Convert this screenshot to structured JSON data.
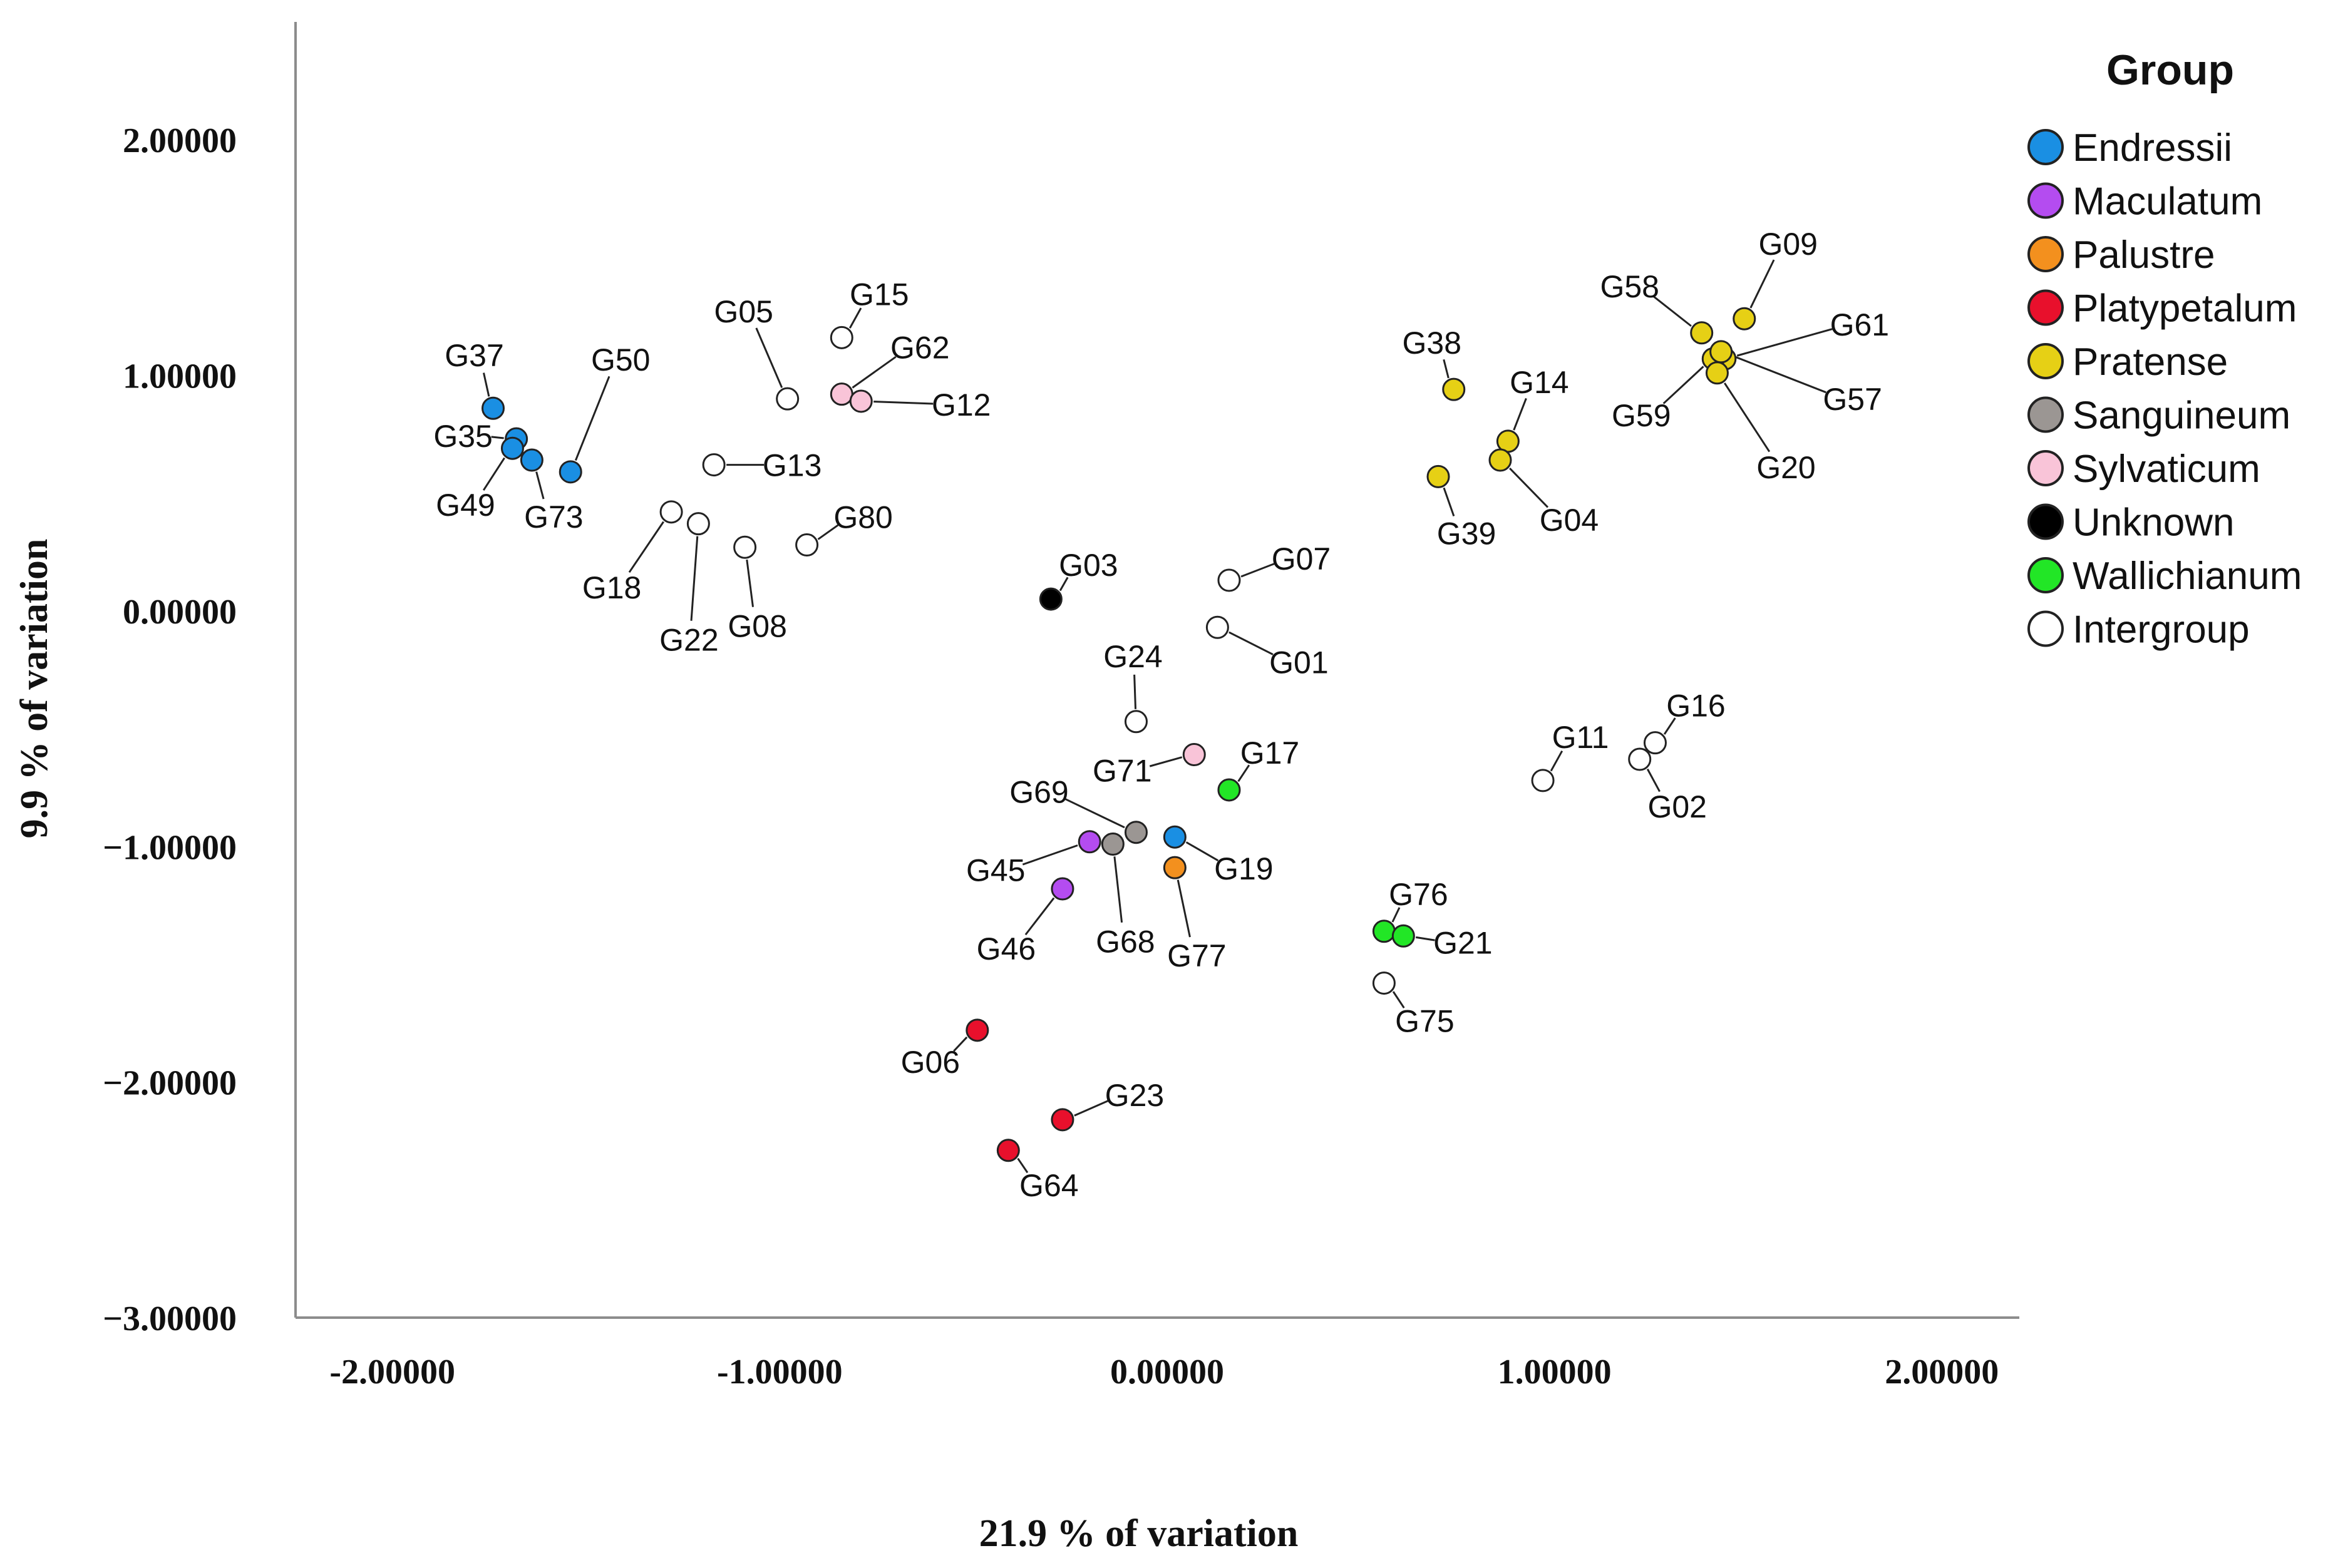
{
  "chart_data": {
    "type": "scatter",
    "xlabel": "21.9 % of variation",
    "ylabel": "9.9 % of variation",
    "xlim": [
      -2.25,
      2.2
    ],
    "ylim": [
      -3.0,
      2.5
    ],
    "x_ticks": [
      -2.0,
      -1.0,
      0.0,
      1.0,
      2.0
    ],
    "y_ticks": [
      -3.0,
      -2.0,
      -1.0,
      0.0,
      1.0,
      2.0
    ],
    "x_tick_labels": [
      "-2.00000",
      "-1.00000",
      "0.00000",
      "1.00000",
      "2.00000"
    ],
    "y_tick_labels": [
      "2.00000",
      "1.00000",
      "0.00000",
      "−1.00000",
      "−2.00000",
      "−3.00000"
    ],
    "legend": {
      "title": "Group",
      "position": "right",
      "entries": [
        {
          "name": "Endressii",
          "color": "#1a8fe3"
        },
        {
          "name": "Maculatum",
          "color": "#b44cf0"
        },
        {
          "name": "Palustre",
          "color": "#f3901e"
        },
        {
          "name": "Platypetalum",
          "color": "#e8102c"
        },
        {
          "name": "Pratense",
          "color": "#e6d015"
        },
        {
          "name": "Sanguineum",
          "color": "#9b9693"
        },
        {
          "name": "Sylvaticum",
          "color": "#f9c4d8"
        },
        {
          "name": "Unknown",
          "color": "#000000"
        },
        {
          "name": "Wallichianum",
          "color": "#22e626"
        },
        {
          "name": "Intergroup",
          "color": "#ffffff"
        }
      ]
    },
    "points": [
      {
        "label": "G37",
        "group": "Endressii",
        "x": -1.74,
        "y": 0.86
      },
      {
        "label": "G35",
        "group": "Endressii",
        "x": -1.68,
        "y": 0.73
      },
      {
        "label": "G49",
        "group": "Endressii",
        "x": -1.69,
        "y": 0.69
      },
      {
        "label": "G73",
        "group": "Endressii",
        "x": -1.64,
        "y": 0.64
      },
      {
        "label": "G50",
        "group": "Endressii",
        "x": -1.54,
        "y": 0.59
      },
      {
        "label": "G19",
        "group": "Endressii",
        "x": 0.02,
        "y": -0.96
      },
      {
        "label": "G45",
        "group": "Maculatum",
        "x": -0.2,
        "y": -0.98
      },
      {
        "label": "G46",
        "group": "Maculatum",
        "x": -0.27,
        "y": -1.18
      },
      {
        "label": "G77",
        "group": "Palustre",
        "x": 0.02,
        "y": -1.09
      },
      {
        "label": "G06",
        "group": "Platypetalum",
        "x": -0.49,
        "y": -1.78
      },
      {
        "label": "G23",
        "group": "Platypetalum",
        "x": -0.27,
        "y": -2.16
      },
      {
        "label": "G64",
        "group": "Platypetalum",
        "x": -0.41,
        "y": -2.29
      },
      {
        "label": "G09",
        "group": "Pratense",
        "x": 1.49,
        "y": 1.24
      },
      {
        "label": "G58",
        "group": "Pratense",
        "x": 1.38,
        "y": 1.18
      },
      {
        "label": "G61",
        "group": "Pratense",
        "x": 1.44,
        "y": 1.07
      },
      {
        "label": "G59",
        "group": "Pratense",
        "x": 1.41,
        "y": 1.07
      },
      {
        "label": "G57",
        "group": "Pratense",
        "x": 1.43,
        "y": 1.1
      },
      {
        "label": "G20",
        "group": "Pratense",
        "x": 1.42,
        "y": 1.01
      },
      {
        "label": "G38",
        "group": "Pratense",
        "x": 0.74,
        "y": 0.94
      },
      {
        "label": "G14",
        "group": "Pratense",
        "x": 0.88,
        "y": 0.72
      },
      {
        "label": "G04",
        "group": "Pratense",
        "x": 0.86,
        "y": 0.64
      },
      {
        "label": "G39",
        "group": "Pratense",
        "x": 0.7,
        "y": 0.57
      },
      {
        "label": "G69",
        "group": "Sanguineum",
        "x": -0.08,
        "y": -0.94
      },
      {
        "label": "G68",
        "group": "Sanguineum",
        "x": -0.14,
        "y": -0.99
      },
      {
        "label": "G62",
        "group": "Sylvaticum",
        "x": -0.84,
        "y": 0.92
      },
      {
        "label": "G12",
        "group": "Sylvaticum",
        "x": -0.79,
        "y": 0.89
      },
      {
        "label": "G71",
        "group": "Sylvaticum",
        "x": 0.07,
        "y": -0.61
      },
      {
        "label": "G03",
        "group": "Unknown",
        "x": -0.3,
        "y": 0.05
      },
      {
        "label": "G17",
        "group": "Wallichianum",
        "x": 0.16,
        "y": -0.76
      },
      {
        "label": "G76",
        "group": "Wallichianum",
        "x": 0.56,
        "y": -1.36
      },
      {
        "label": "G21",
        "group": "Wallichianum",
        "x": 0.61,
        "y": -1.38
      },
      {
        "label": "G05",
        "group": "Intergroup",
        "x": -0.98,
        "y": 0.9
      },
      {
        "label": "G15",
        "group": "Intergroup",
        "x": -0.84,
        "y": 1.16
      },
      {
        "label": "G13",
        "group": "Intergroup",
        "x": -1.17,
        "y": 0.62
      },
      {
        "label": "G18",
        "group": "Intergroup",
        "x": -1.28,
        "y": 0.42
      },
      {
        "label": "G22",
        "group": "Intergroup",
        "x": -1.21,
        "y": 0.37
      },
      {
        "label": "G08",
        "group": "Intergroup",
        "x": -1.09,
        "y": 0.27
      },
      {
        "label": "G80",
        "group": "Intergroup",
        "x": -0.93,
        "y": 0.28
      },
      {
        "label": "G07",
        "group": "Intergroup",
        "x": 0.16,
        "y": 0.13
      },
      {
        "label": "G01",
        "group": "Intergroup",
        "x": 0.13,
        "y": -0.07
      },
      {
        "label": "G24",
        "group": "Intergroup",
        "x": -0.08,
        "y": -0.47
      },
      {
        "label": "G16",
        "group": "Intergroup",
        "x": 1.26,
        "y": -0.56
      },
      {
        "label": "G02",
        "group": "Intergroup",
        "x": 1.22,
        "y": -0.63
      },
      {
        "label": "G11",
        "group": "Intergroup",
        "x": 0.97,
        "y": -0.72
      },
      {
        "label": "G75",
        "group": "Intergroup",
        "x": 0.56,
        "y": -1.58
      }
    ]
  }
}
